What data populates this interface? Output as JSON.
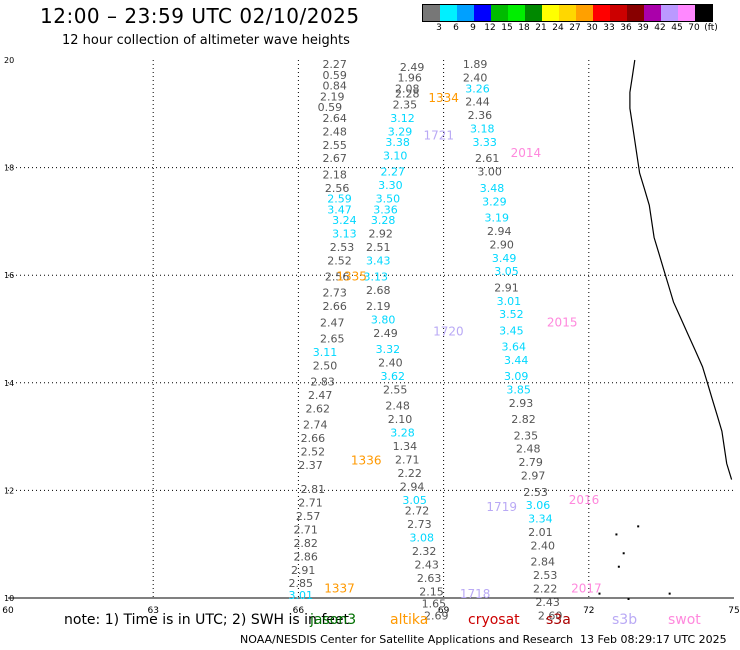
{
  "title": "12:00 – 23:59 UTC 02/10/2025",
  "subtitle": "12 hour collection of altimeter wave heights",
  "legend": {
    "colors": [
      "#777777",
      "#00f0ff",
      "#00a0ff",
      "#0000ff",
      "#00bb00",
      "#00ee00",
      "#008800",
      "#ffff00",
      "#ffd700",
      "#ffa000",
      "#ff0000",
      "#cc0000",
      "#880000",
      "#aa00aa",
      "#bb99ff",
      "#ff88ff",
      "#000000"
    ],
    "labels": [
      "3",
      "6",
      "9",
      "12",
      "15",
      "18",
      "21",
      "24",
      "27",
      "30",
      "33",
      "36",
      "39",
      "42",
      "45",
      "70",
      "(ft)"
    ]
  },
  "axes": {
    "x_ticks": [
      60,
      63,
      66,
      69,
      72,
      75
    ],
    "y_ticks": [
      10,
      12,
      14,
      16,
      18,
      20
    ],
    "xlim": [
      60,
      75
    ],
    "ylim": [
      10,
      20
    ]
  },
  "note": "note: 1) Time is in UTC; 2) SWH is in feet",
  "satellites": [
    {
      "name": "jason3",
      "color": "#007000"
    },
    {
      "name": "altika",
      "color": "#ff9900"
    },
    {
      "name": "cryosat",
      "color": "#cc0000"
    },
    {
      "name": "s3a",
      "color": "#aa0000"
    },
    {
      "name": "s3b",
      "color": "#b9a9f5"
    },
    {
      "name": "swot",
      "color": "#ff88dd"
    }
  ],
  "credit": "NOAA/NESDIS Center for Satellite Applications and Research",
  "timestamp": "13 Feb 08:29:17 UTC 2025",
  "colors": {
    "gray": "#555555",
    "cyan": "#00d8ff",
    "orange": "#ff9900",
    "lavender": "#b9a9f5",
    "pink": "#ff88dd"
  },
  "pass_labels": [
    {
      "text": "1334",
      "sat": "altika",
      "lon": 69.0,
      "lat": 19.22
    },
    {
      "text": "2014",
      "sat": "swot",
      "lon": 70.7,
      "lat": 18.2
    },
    {
      "text": "1721",
      "sat": "s3b",
      "lon": 68.9,
      "lat": 18.52
    },
    {
      "text": "1335",
      "sat": "altika",
      "lon": 67.1,
      "lat": 15.9
    },
    {
      "text": "2015",
      "sat": "swot",
      "lon": 71.45,
      "lat": 15.05
    },
    {
      "text": "1720",
      "sat": "s3b",
      "lon": 69.1,
      "lat": 14.88
    },
    {
      "text": "1336",
      "sat": "altika",
      "lon": 67.4,
      "lat": 12.48
    },
    {
      "text": "1719",
      "sat": "s3b",
      "lon": 70.2,
      "lat": 11.62
    },
    {
      "text": "2016",
      "sat": "swot",
      "lon": 71.9,
      "lat": 11.75
    },
    {
      "text": "1337",
      "sat": "altika",
      "lon": 66.85,
      "lat": 10.1
    },
    {
      "text": "1718",
      "sat": "s3b",
      "lon": 69.65,
      "lat": 10.0
    },
    {
      "text": "2017",
      "sat": "swot",
      "lon": 71.95,
      "lat": 10.1
    }
  ],
  "tracks": [
    {
      "name": "track-a",
      "points": [
        [
          66.75,
          19.85,
          "2.27",
          "g"
        ],
        [
          66.75,
          19.65,
          "0.59",
          "g"
        ],
        [
          66.75,
          19.45,
          "0.84",
          "g"
        ],
        [
          66.7,
          19.25,
          "2.19",
          "g"
        ],
        [
          66.65,
          19.05,
          "0.59",
          "g"
        ],
        [
          66.75,
          18.85,
          "2.64",
          "g"
        ],
        [
          66.75,
          18.6,
          "2.48",
          "g"
        ],
        [
          66.75,
          18.35,
          "2.55",
          "g"
        ],
        [
          66.75,
          18.1,
          "2.67",
          "g"
        ],
        [
          66.75,
          17.8,
          "2.18",
          "g"
        ],
        [
          66.8,
          17.55,
          "2.56",
          "g"
        ],
        [
          66.85,
          17.35,
          "2.59",
          "c"
        ],
        [
          66.85,
          17.15,
          "3.47",
          "c"
        ],
        [
          66.95,
          16.95,
          "3.24",
          "c"
        ],
        [
          66.95,
          16.7,
          "3.13",
          "c"
        ],
        [
          66.9,
          16.45,
          "2.53",
          "g"
        ],
        [
          66.85,
          16.2,
          "2.52",
          "g"
        ],
        [
          66.8,
          15.9,
          "2.56",
          "g"
        ],
        [
          66.75,
          15.6,
          "2.73",
          "g"
        ],
        [
          66.75,
          15.35,
          "2.66",
          "g"
        ],
        [
          66.7,
          15.05,
          "2.47",
          "g"
        ],
        [
          66.7,
          14.75,
          "2.65",
          "g"
        ],
        [
          66.55,
          14.5,
          "3.11",
          "c"
        ],
        [
          66.55,
          14.25,
          "2.50",
          "g"
        ],
        [
          66.5,
          13.95,
          "2.83",
          "g"
        ],
        [
          66.45,
          13.7,
          "2.47",
          "g"
        ],
        [
          66.4,
          13.45,
          "2.62",
          "g"
        ],
        [
          66.35,
          13.15,
          "2.74",
          "g"
        ],
        [
          66.3,
          12.9,
          "2.66",
          "g"
        ],
        [
          66.3,
          12.65,
          "2.52",
          "g"
        ],
        [
          66.25,
          12.4,
          "2.37",
          "g"
        ],
        [
          66.3,
          11.95,
          "2.81",
          "g"
        ],
        [
          66.25,
          11.7,
          "2.71",
          "g"
        ],
        [
          66.2,
          11.45,
          "2.57",
          "g"
        ],
        [
          66.15,
          11.2,
          "2.71",
          "g"
        ],
        [
          66.15,
          10.95,
          "2.82",
          "g"
        ],
        [
          66.15,
          10.7,
          "2.86",
          "g"
        ],
        [
          66.1,
          10.45,
          "2.91",
          "g"
        ],
        [
          66.05,
          10.2,
          "2.85",
          "g"
        ],
        [
          66.05,
          9.98,
          "3.01",
          "c"
        ]
      ]
    },
    {
      "name": "track-b",
      "points": [
        [
          68.35,
          19.8,
          "2.49",
          "g"
        ],
        [
          68.3,
          19.6,
          "1.96",
          "g"
        ],
        [
          68.25,
          19.4,
          "2.08",
          "g"
        ],
        [
          68.25,
          19.3,
          "2.28",
          "g"
        ],
        [
          68.2,
          19.1,
          "2.35",
          "g"
        ],
        [
          68.15,
          18.85,
          "3.12",
          "c"
        ],
        [
          68.1,
          18.6,
          "3.29",
          "c"
        ],
        [
          68.05,
          18.4,
          "3.38",
          "c"
        ],
        [
          68.0,
          18.15,
          "3.10",
          "c"
        ],
        [
          67.95,
          17.85,
          "2.27",
          "c"
        ],
        [
          67.9,
          17.6,
          "3.30",
          "c"
        ],
        [
          67.85,
          17.35,
          "3.50",
          "c"
        ],
        [
          67.8,
          17.15,
          "3.36",
          "c"
        ],
        [
          67.75,
          16.95,
          "3.28",
          "c"
        ],
        [
          67.7,
          16.7,
          "2.92",
          "g"
        ],
        [
          67.65,
          16.45,
          "2.51",
          "g"
        ],
        [
          67.65,
          16.2,
          "3.43",
          "c"
        ],
        [
          67.6,
          15.9,
          "3.13",
          "c"
        ],
        [
          67.65,
          15.65,
          "2.68",
          "g"
        ],
        [
          67.65,
          15.35,
          "2.19",
          "g"
        ],
        [
          67.75,
          15.1,
          "3.80",
          "c"
        ],
        [
          67.8,
          14.85,
          "2.49",
          "g"
        ],
        [
          67.85,
          14.55,
          "3.32",
          "c"
        ],
        [
          67.9,
          14.3,
          "2.40",
          "g"
        ],
        [
          67.95,
          14.05,
          "3.62",
          "c"
        ],
        [
          68.0,
          13.8,
          "2.55",
          "g"
        ],
        [
          68.05,
          13.5,
          "2.48",
          "g"
        ],
        [
          68.1,
          13.25,
          "2.10",
          "g"
        ],
        [
          68.15,
          13.0,
          "3.28",
          "c"
        ],
        [
          68.2,
          12.75,
          "1.34",
          "g"
        ],
        [
          68.25,
          12.5,
          "2.71",
          "g"
        ],
        [
          68.3,
          12.25,
          "2.22",
          "g"
        ],
        [
          68.35,
          12.0,
          "2.94",
          "g"
        ],
        [
          68.4,
          11.75,
          "3.05",
          "c"
        ],
        [
          68.45,
          11.55,
          "2.72",
          "g"
        ],
        [
          68.5,
          11.3,
          "2.73",
          "g"
        ],
        [
          68.55,
          11.05,
          "3.08",
          "c"
        ],
        [
          68.6,
          10.8,
          "2.32",
          "g"
        ],
        [
          68.65,
          10.55,
          "2.43",
          "g"
        ],
        [
          68.7,
          10.3,
          "2.63",
          "g"
        ],
        [
          68.75,
          10.05,
          "2.15",
          "g"
        ],
        [
          68.8,
          9.82,
          "1.65",
          "g"
        ],
        [
          68.85,
          9.6,
          "2.69",
          "g"
        ]
      ]
    },
    {
      "name": "track-c",
      "points": [
        [
          69.65,
          19.85,
          "1.89",
          "g"
        ],
        [
          69.65,
          19.6,
          "2.40",
          "g"
        ],
        [
          69.7,
          19.4,
          "3.26",
          "c"
        ],
        [
          69.7,
          19.15,
          "2.44",
          "g"
        ],
        [
          69.75,
          18.9,
          "2.36",
          "g"
        ],
        [
          69.8,
          18.65,
          "3.18",
          "c"
        ],
        [
          69.85,
          18.4,
          "3.33",
          "c"
        ],
        [
          69.9,
          18.1,
          "2.61",
          "g"
        ],
        [
          69.95,
          17.85,
          "3.00",
          "g"
        ],
        [
          70.0,
          17.55,
          "3.48",
          "c"
        ],
        [
          70.05,
          17.3,
          "3.29",
          "c"
        ],
        [
          70.1,
          17.0,
          "3.19",
          "c"
        ],
        [
          70.15,
          16.75,
          "2.94",
          "g"
        ],
        [
          70.2,
          16.5,
          "2.90",
          "g"
        ],
        [
          70.25,
          16.25,
          "3.49",
          "c"
        ],
        [
          70.3,
          16.0,
          "3.05",
          "c"
        ],
        [
          70.3,
          15.7,
          "2.91",
          "g"
        ],
        [
          70.35,
          15.45,
          "3.01",
          "c"
        ],
        [
          70.4,
          15.2,
          "3.52",
          "c"
        ],
        [
          70.4,
          14.9,
          "3.45",
          "c"
        ],
        [
          70.45,
          14.6,
          "3.64",
          "c"
        ],
        [
          70.5,
          14.35,
          "3.44",
          "c"
        ],
        [
          70.5,
          14.05,
          "3.09",
          "c"
        ],
        [
          70.55,
          13.8,
          "3.85",
          "c"
        ],
        [
          70.6,
          13.55,
          "2.93",
          "g"
        ],
        [
          70.65,
          13.25,
          "2.82",
          "g"
        ],
        [
          70.7,
          12.95,
          "2.35",
          "g"
        ],
        [
          70.75,
          12.7,
          "2.48",
          "g"
        ],
        [
          70.8,
          12.45,
          "2.79",
          "g"
        ],
        [
          70.85,
          12.2,
          "2.97",
          "g"
        ],
        [
          70.9,
          11.9,
          "2.53",
          "g"
        ],
        [
          70.95,
          11.65,
          "3.06",
          "c"
        ],
        [
          71.0,
          11.4,
          "3.34",
          "c"
        ],
        [
          71.0,
          11.15,
          "2.01",
          "g"
        ],
        [
          71.05,
          10.9,
          "2.40",
          "g"
        ],
        [
          71.05,
          10.6,
          "2.84",
          "g"
        ],
        [
          71.1,
          10.35,
          "2.53",
          "g"
        ],
        [
          71.1,
          10.1,
          "2.22",
          "g"
        ],
        [
          71.15,
          9.85,
          "2.43",
          "g"
        ],
        [
          71.2,
          9.6,
          "2.60",
          "g"
        ]
      ]
    }
  ]
}
